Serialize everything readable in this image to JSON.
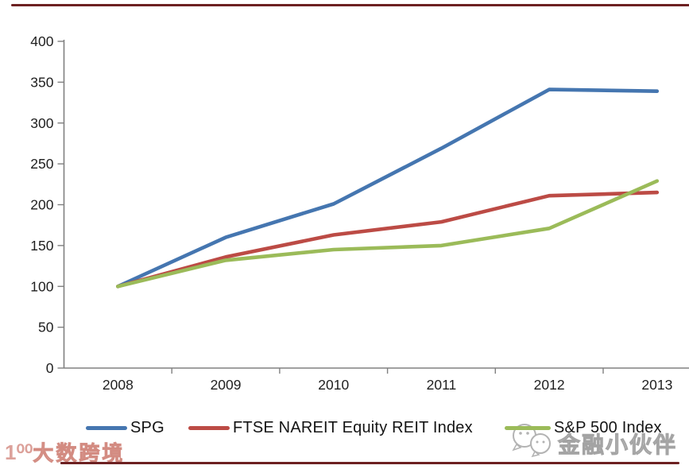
{
  "chart_data": {
    "type": "line",
    "title": "",
    "xlabel": "",
    "ylabel": "",
    "categories": [
      "2008",
      "2009",
      "2010",
      "2011",
      "2012",
      "2013"
    ],
    "series": [
      {
        "name": "SPG",
        "color": "#4576b0",
        "values": [
          100,
          160,
          201,
          269,
          341,
          339
        ]
      },
      {
        "name": "FTSE NAREIT Equity REIT Index",
        "color": "#bc4b45",
        "values": [
          100,
          136,
          163,
          179,
          211,
          215
        ]
      },
      {
        "name": "S&P 500 Index",
        "color": "#9bbb59",
        "values": [
          100,
          132,
          145,
          150,
          171,
          229
        ]
      }
    ],
    "ylim": [
      0,
      400
    ],
    "ytick_step": 50,
    "grid": false,
    "legend_position": "bottom",
    "axis_color": "#808080",
    "tick_label_color": "#1f1f1f"
  },
  "decor": {
    "accent_rule_color": "#6d2122"
  },
  "watermarks": {
    "left_logo": "1⁰⁰",
    "left_text": "大数跨境",
    "right_text": "金融小伙伴"
  }
}
